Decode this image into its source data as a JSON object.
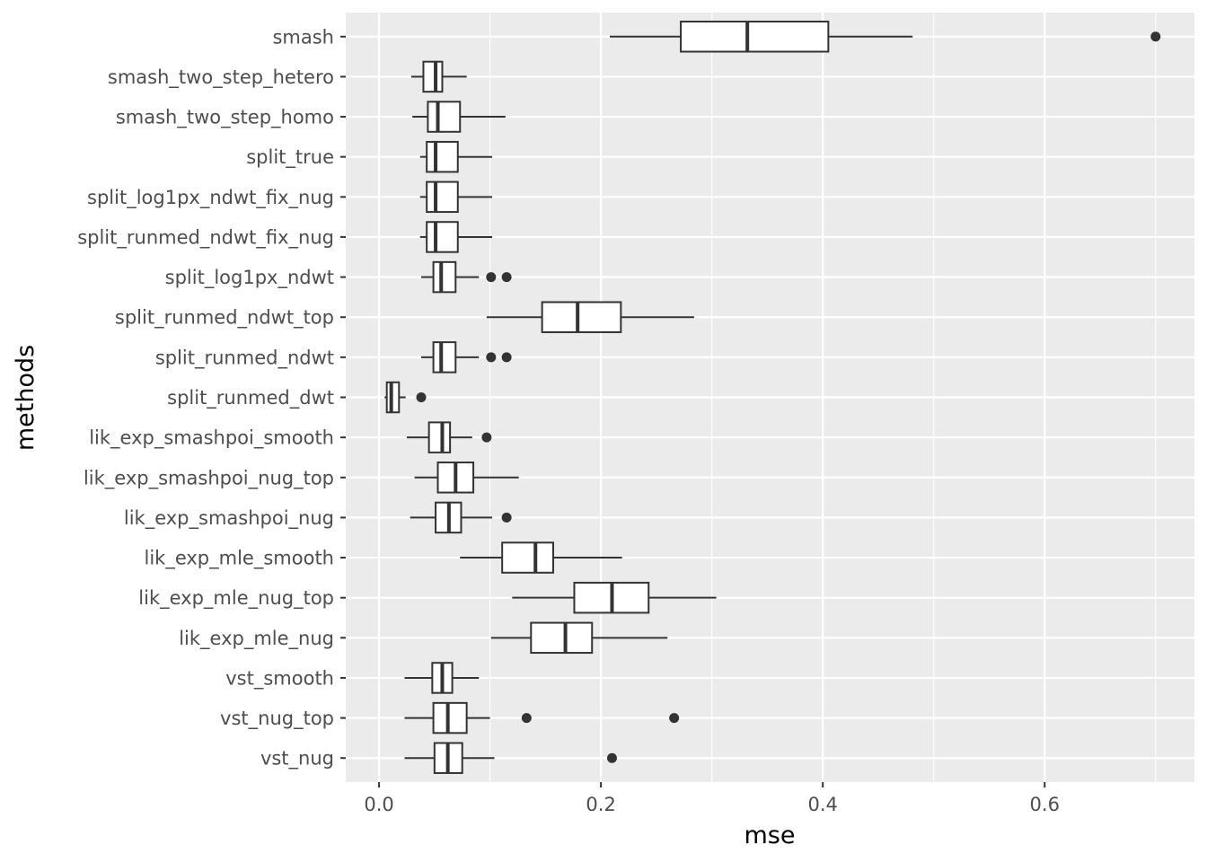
{
  "chart_data": {
    "type": "boxplot",
    "orientation": "horizontal",
    "xlabel": "mse",
    "ylabel": "methods",
    "xlim": [
      -0.03,
      0.735
    ],
    "xticks": [
      0.0,
      0.2,
      0.4,
      0.6
    ],
    "xtick_labels": [
      "0.0",
      "0.2",
      "0.4",
      "0.6"
    ],
    "grid": true,
    "colors": {
      "panel": "#ebebeb",
      "grid": "#ffffff",
      "box_fill": "#ffffff",
      "box_line": "#333333",
      "point": "#333333",
      "tick_text": "#4d4d4d"
    },
    "series": [
      {
        "name": "smash",
        "whisker_low": 0.208,
        "q1": 0.272,
        "median": 0.332,
        "q3": 0.405,
        "whisker_high": 0.481,
        "outliers": [
          0.7
        ]
      },
      {
        "name": "smash_two_step_hetero",
        "whisker_low": 0.029,
        "q1": 0.04,
        "median": 0.051,
        "q3": 0.057,
        "whisker_high": 0.079,
        "outliers": []
      },
      {
        "name": "smash_two_step_homo",
        "whisker_low": 0.03,
        "q1": 0.044,
        "median": 0.053,
        "q3": 0.073,
        "whisker_high": 0.114,
        "outliers": []
      },
      {
        "name": "split_true",
        "whisker_low": 0.037,
        "q1": 0.043,
        "median": 0.051,
        "q3": 0.071,
        "whisker_high": 0.102,
        "outliers": []
      },
      {
        "name": "split_log1px_ndwt_fix_nug",
        "whisker_low": 0.037,
        "q1": 0.043,
        "median": 0.051,
        "q3": 0.071,
        "whisker_high": 0.102,
        "outliers": []
      },
      {
        "name": "split_runmed_ndwt_fix_nug",
        "whisker_low": 0.037,
        "q1": 0.043,
        "median": 0.051,
        "q3": 0.071,
        "whisker_high": 0.102,
        "outliers": []
      },
      {
        "name": "split_log1px_ndwt",
        "whisker_low": 0.038,
        "q1": 0.049,
        "median": 0.056,
        "q3": 0.069,
        "whisker_high": 0.09,
        "outliers": [
          0.101,
          0.115
        ]
      },
      {
        "name": "split_runmed_ndwt_top",
        "whisker_low": 0.097,
        "q1": 0.147,
        "median": 0.179,
        "q3": 0.218,
        "whisker_high": 0.284,
        "outliers": []
      },
      {
        "name": "split_runmed_ndwt",
        "whisker_low": 0.038,
        "q1": 0.049,
        "median": 0.056,
        "q3": 0.069,
        "whisker_high": 0.09,
        "outliers": [
          0.101,
          0.115
        ]
      },
      {
        "name": "split_runmed_dwt",
        "whisker_low": 0.005,
        "q1": 0.007,
        "median": 0.011,
        "q3": 0.018,
        "whisker_high": 0.024,
        "outliers": [
          0.038
        ]
      },
      {
        "name": "lik_exp_smashpoi_smooth",
        "whisker_low": 0.025,
        "q1": 0.045,
        "median": 0.057,
        "q3": 0.064,
        "whisker_high": 0.084,
        "outliers": [
          0.097
        ]
      },
      {
        "name": "lik_exp_smashpoi_nug_top",
        "whisker_low": 0.032,
        "q1": 0.053,
        "median": 0.069,
        "q3": 0.085,
        "whisker_high": 0.126,
        "outliers": []
      },
      {
        "name": "lik_exp_smashpoi_nug",
        "whisker_low": 0.028,
        "q1": 0.051,
        "median": 0.063,
        "q3": 0.074,
        "whisker_high": 0.102,
        "outliers": [
          0.115
        ]
      },
      {
        "name": "lik_exp_mle_smooth",
        "whisker_low": 0.073,
        "q1": 0.111,
        "median": 0.141,
        "q3": 0.157,
        "whisker_high": 0.219,
        "outliers": []
      },
      {
        "name": "lik_exp_mle_nug_top",
        "whisker_low": 0.12,
        "q1": 0.176,
        "median": 0.21,
        "q3": 0.243,
        "whisker_high": 0.304,
        "outliers": []
      },
      {
        "name": "lik_exp_mle_nug",
        "whisker_low": 0.101,
        "q1": 0.137,
        "median": 0.168,
        "q3": 0.192,
        "whisker_high": 0.26,
        "outliers": []
      },
      {
        "name": "vst_smooth",
        "whisker_low": 0.023,
        "q1": 0.048,
        "median": 0.057,
        "q3": 0.066,
        "whisker_high": 0.09,
        "outliers": []
      },
      {
        "name": "vst_nug_top",
        "whisker_low": 0.023,
        "q1": 0.049,
        "median": 0.062,
        "q3": 0.079,
        "whisker_high": 0.1,
        "outliers": [
          0.133,
          0.266
        ]
      },
      {
        "name": "vst_nug",
        "whisker_low": 0.023,
        "q1": 0.05,
        "median": 0.062,
        "q3": 0.075,
        "whisker_high": 0.104,
        "outliers": [
          0.21
        ]
      }
    ]
  }
}
